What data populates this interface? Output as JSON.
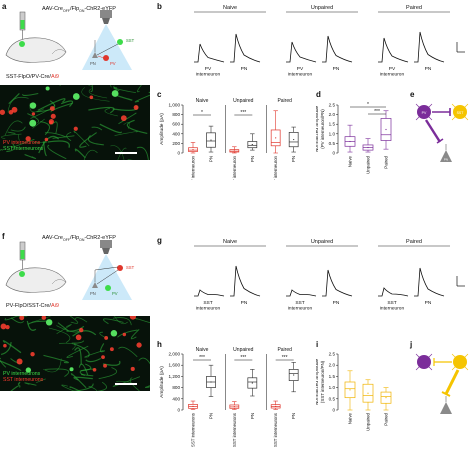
{
  "panel_labels": {
    "a": "a",
    "b": "b",
    "c": "c",
    "d": "d",
    "e": "e",
    "f": "f",
    "g": "g",
    "h": "h",
    "i": "i",
    "j": "j"
  },
  "top": {
    "injection_text": "AAV-Cre",
    "injection_sub1": "OFF",
    "injection_mid": "/Flp",
    "injection_sub2": "ON",
    "injection_tail": "-ChR2-eYFP",
    "mouse_line": "SST-FlpO/PV-Cre/",
    "mouse_line_reporter": "Ai9",
    "cell_label_pv": "PV",
    "cell_label_sst": "SST",
    "cell_label_pn": "PN",
    "legend_line1": "PV interneurons",
    "legend_line2": "SST interneurons",
    "legend_color1": "#ff3b2f",
    "legend_color2": "#3ddc4a",
    "trace_groups": [
      "Naive",
      "Unpaired",
      "Paired"
    ],
    "trace_cells": [
      "PV interneuron",
      "PN"
    ],
    "c_ylabel": "Amplitude (pA)",
    "c_yticks": [
      "1,000",
      "800",
      "600",
      "400",
      "200",
      "0"
    ],
    "c_groups": [
      "Naive",
      "Unpaired",
      "Paired"
    ],
    "c_xcats": [
      "PV interneuron",
      "PN"
    ],
    "c_sig": [
      "*",
      "***",
      ""
    ],
    "d_ylabel": "Normalized amplitude (PV interneuron/PN)",
    "d_yticks": [
      "2.5",
      "2.0",
      "1.5",
      "1.0",
      "0.5",
      "0"
    ],
    "d_xcats": [
      "Naive",
      "Unpaired",
      "Paired"
    ],
    "d_sig": [
      "*",
      "***"
    ],
    "e_colors": {
      "pv": "#7b2d9a",
      "sst": "#f5c400",
      "pn": "#888888"
    },
    "e_labels": {
      "pv": "PV",
      "sst": "SST",
      "pn": "PN"
    }
  },
  "bottom": {
    "injection_text": "AAV-Cre",
    "injection_sub1": "OFF",
    "injection_mid": "/Flp",
    "injection_sub2": "ON",
    "injection_tail": "-ChR2-eYFP",
    "mouse_line": "PV-FlpO/SST-Cre/",
    "mouse_line_reporter": "Ai9",
    "cell_label_pv": "PV",
    "cell_label_sst": "SST",
    "cell_label_pn": "PN",
    "legend_line1": "PV interneurons",
    "legend_line2": "SST interneurons",
    "legend_color1": "#3ddc4a",
    "legend_color2": "#ff3b2f",
    "trace_groups": [
      "Naive",
      "Unpaired",
      "Paired"
    ],
    "trace_cells": [
      "SST interneuron",
      "PN"
    ],
    "h_ylabel": "Amplitude (pA)",
    "h_yticks": [
      "2,000",
      "1,600",
      "1,200",
      "800",
      "400",
      "0"
    ],
    "h_groups": [
      "Naive",
      "Unpaired",
      "Paired"
    ],
    "h_xcats": [
      "SST interneurons",
      "PN"
    ],
    "h_sig": [
      "***",
      "***",
      "***"
    ],
    "i_ylabel": "Normalized amplitude (SST interneuron/PN)",
    "i_yticks": [
      "2.5",
      "2.0",
      "1.5",
      "1.0",
      "0.5",
      "0"
    ],
    "i_xcats": [
      "Naive",
      "Unpaired",
      "Paired"
    ]
  },
  "chart_data": [
    {
      "type": "box",
      "panel": "c",
      "ylabel": "Amplitude (pA)",
      "ylim": [
        0,
        1000
      ],
      "groups": [
        "Naive",
        "Unpaired",
        "Paired"
      ],
      "categories": [
        "PV interneuron",
        "PN"
      ],
      "series": [
        {
          "group": "Naive",
          "name": "PV interneuron",
          "color": "#e0362c",
          "q": [
            0,
            30,
            60,
            110,
            220
          ]
        },
        {
          "group": "Naive",
          "name": "PN",
          "color": "#333333",
          "q": [
            20,
            120,
            250,
            420,
            560
          ]
        },
        {
          "group": "Unpaired",
          "name": "PV interneuron",
          "color": "#e0362c",
          "q": [
            0,
            20,
            40,
            70,
            130
          ]
        },
        {
          "group": "Unpaired",
          "name": "PN",
          "color": "#333333",
          "q": [
            60,
            110,
            160,
            240,
            400
          ]
        },
        {
          "group": "Paired",
          "name": "PV interneuron",
          "color": "#e0362c",
          "q": [
            0,
            150,
            220,
            480,
            880
          ]
        },
        {
          "group": "Paired",
          "name": "PN",
          "color": "#333333",
          "q": [
            20,
            130,
            230,
            430,
            540
          ]
        }
      ]
    },
    {
      "type": "box",
      "panel": "d",
      "ylabel": "Normalized amplitude (PV interneuron/PN)",
      "ylim": [
        0,
        2.5
      ],
      "categories": [
        "Naive",
        "Unpaired",
        "Paired"
      ],
      "series": [
        {
          "name": "Naive",
          "color": "#7b2d9a",
          "q": [
            0.05,
            0.35,
            0.6,
            0.85,
            1.45
          ]
        },
        {
          "name": "Unpaired",
          "color": "#7b2d9a",
          "q": [
            0.05,
            0.15,
            0.28,
            0.42,
            0.75
          ]
        },
        {
          "name": "Paired",
          "color": "#7b2d9a",
          "q": [
            0.2,
            0.65,
            0.95,
            1.8,
            2.2
          ]
        }
      ]
    },
    {
      "type": "box",
      "panel": "h",
      "ylabel": "Amplitude (pA)",
      "ylim": [
        0,
        2000
      ],
      "groups": [
        "Naive",
        "Unpaired",
        "Paired"
      ],
      "categories": [
        "SST interneurons",
        "PN"
      ],
      "series": [
        {
          "group": "Naive",
          "name": "SST interneurons",
          "color": "#e0362c",
          "q": [
            20,
            60,
            120,
            200,
            320
          ]
        },
        {
          "group": "Naive",
          "name": "PN",
          "color": "#333333",
          "q": [
            480,
            800,
            1000,
            1200,
            1600
          ]
        },
        {
          "group": "Unpaired",
          "name": "SST interneurons",
          "color": "#e0362c",
          "q": [
            20,
            60,
            110,
            180,
            300
          ]
        },
        {
          "group": "Unpaired",
          "name": "PN",
          "color": "#333333",
          "q": [
            500,
            780,
            1000,
            1150,
            1450
          ]
        },
        {
          "group": "Paired",
          "name": "SST interneurons",
          "color": "#e0362c",
          "q": [
            20,
            70,
            120,
            190,
            320
          ]
        },
        {
          "group": "Paired",
          "name": "PN",
          "color": "#333333",
          "q": [
            650,
            1050,
            1300,
            1450,
            1700
          ]
        }
      ]
    },
    {
      "type": "box",
      "panel": "i",
      "ylabel": "Normalized amplitude (SST interneuron/PN)",
      "ylim": [
        0,
        2.5
      ],
      "categories": [
        "Naive",
        "Unpaired",
        "Paired"
      ],
      "series": [
        {
          "name": "Naive",
          "color": "#f0b400",
          "q": [
            0.0,
            0.55,
            0.95,
            1.25,
            1.75
          ]
        },
        {
          "name": "Unpaired",
          "color": "#f0b400",
          "q": [
            0.0,
            0.35,
            0.65,
            1.15,
            1.35
          ]
        },
        {
          "name": "Paired",
          "color": "#f0b400",
          "q": [
            0.0,
            0.3,
            0.6,
            0.8,
            1.0
          ]
        }
      ]
    }
  ]
}
